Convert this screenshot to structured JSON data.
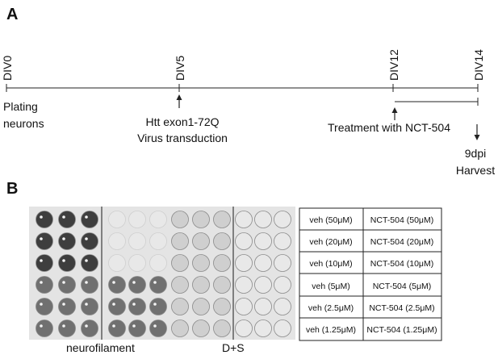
{
  "panel_a": {
    "label": "A",
    "timepoints": [
      {
        "label": "DIV0"
      },
      {
        "label": "DIV5"
      },
      {
        "label": "DIV12"
      },
      {
        "label": "DIV14"
      }
    ],
    "annotations": {
      "plating_line1": "Plating",
      "plating_line2": "neurons",
      "virus_line1": "Htt exon1-72Q",
      "virus_line2": "Virus transduction",
      "treatment": "Treatment with NCT-504",
      "harvest_line1": "9dpi",
      "harvest_line2": "Harvest"
    }
  },
  "panel_b": {
    "label": "B",
    "caption_left": "neurofilament",
    "caption_right": "D+S",
    "legend_rows": [
      {
        "veh": "veh (50μM)",
        "drug": "NCT-504 (50μM)"
      },
      {
        "veh": "veh (20μM)",
        "drug": "NCT-504 (20μM)"
      },
      {
        "veh": "veh (10μM)",
        "drug": "NCT-504 (10μM)"
      },
      {
        "veh": "veh (5μM)",
        "drug": "NCT-504 (5μM)"
      },
      {
        "veh": "veh (2.5μM)",
        "drug": "NCT-504 (2.5μM)"
      },
      {
        "veh": "veh (1.25μM)",
        "drug": "NCT-504 (1.25μM)"
      }
    ],
    "colors": {
      "plate_bg": "#e4e4e4",
      "well_dark": "#3e3e3e",
      "well_medium": "#707070",
      "well_light": "#e8e8e8",
      "well_stain": "#cfcfcf"
    }
  }
}
